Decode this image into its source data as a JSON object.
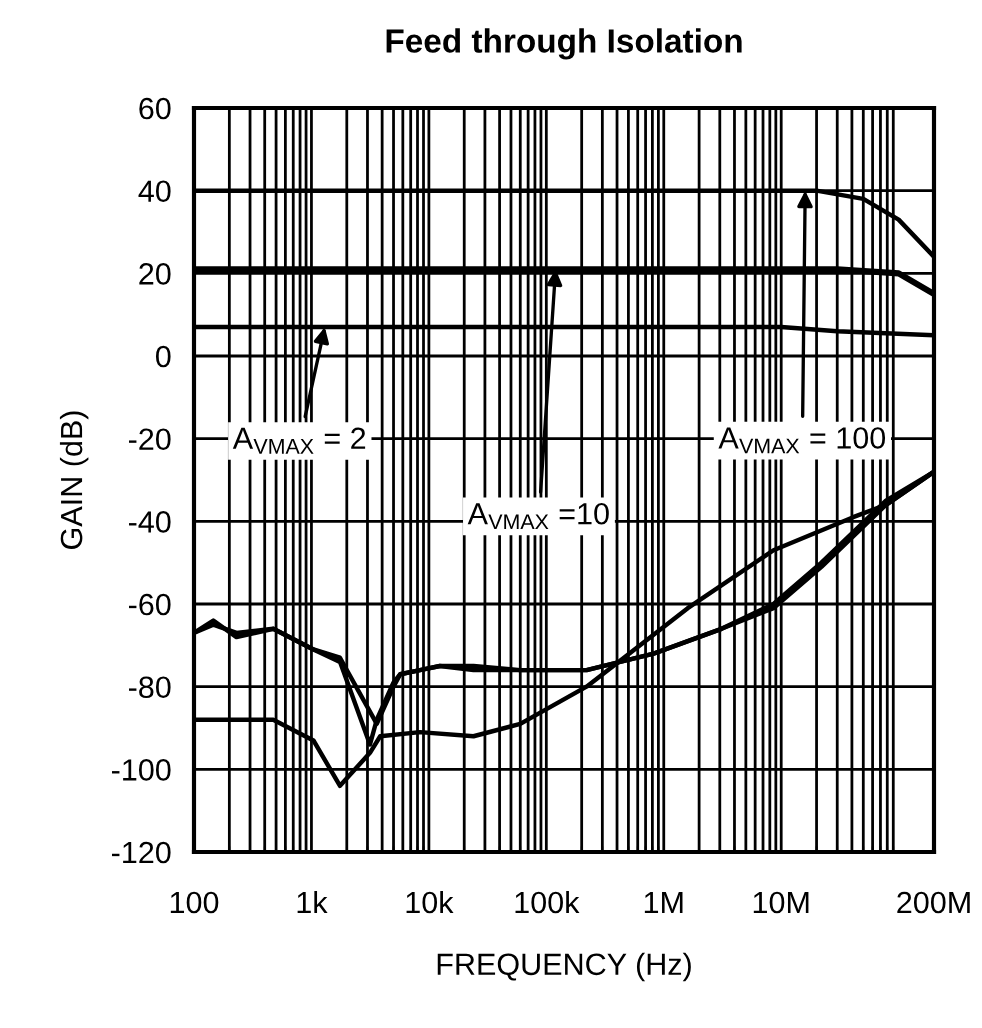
{
  "chart_data": {
    "type": "line",
    "title": "Feed through Isolation",
    "xlabel": "FREQUENCY (Hz)",
    "ylabel": "GAIN (dB)",
    "log": "x",
    "grid": true,
    "legend": false,
    "marker": "none",
    "line_style": "solid",
    "xlim": [
      100,
      200000000
    ],
    "xticks": [
      {
        "value": 100,
        "label": "100"
      },
      {
        "value": 1000,
        "label": "1k"
      },
      {
        "value": 10000,
        "label": "10k"
      },
      {
        "value": 100000,
        "label": "100k"
      },
      {
        "value": 1000000,
        "label": "1M"
      },
      {
        "value": 10000000,
        "label": "10M"
      },
      {
        "value": 200000000,
        "label": "200M"
      }
    ],
    "ylim": [
      -120,
      60
    ],
    "yticks": [
      -120,
      -100,
      -80,
      -60,
      -40,
      -20,
      0,
      20,
      40,
      60
    ],
    "series": [
      {
        "color": "#000000",
        "x": [
          100,
          20000000,
          50000000,
          100000000,
          200000000
        ],
        "values": [
          40,
          40,
          38,
          33,
          24
        ]
      },
      {
        "color": "#000000",
        "x": [
          100,
          30000000,
          100000000,
          200000000
        ],
        "values": [
          21,
          21,
          20,
          15
        ]
      },
      {
        "color": "#000000",
        "x": [
          100,
          10000000,
          30000000,
          200000000
        ],
        "values": [
          7,
          7,
          6,
          5
        ]
      },
      {
        "color": "#000000",
        "x": [
          100,
          146,
          230,
          473,
          1040,
          1750,
          3600,
          5000,
          5700,
          8400,
          12400,
          24000,
          60000,
          220000,
          820000,
          3100000,
          8600000,
          22000000,
          78000000,
          200000000
        ],
        "values": [
          -67,
          -64,
          -68,
          -66,
          -71,
          -73,
          -89,
          -80,
          -77,
          -76,
          -75,
          -75,
          -76,
          -76,
          -72,
          -66,
          -60,
          -50,
          -35,
          -28
        ]
      },
      {
        "color": "#000000",
        "x": [
          100,
          146,
          230,
          473,
          1040,
          1750,
          3150,
          3600,
          5000,
          5700,
          8400,
          12400,
          24000,
          60000,
          220000,
          820000,
          3100000,
          8600000,
          22000000,
          78000000,
          200000000
        ],
        "values": [
          -67,
          -65,
          -67,
          -66,
          -71,
          -74,
          -94,
          -88,
          -79,
          -77,
          -76,
          -75,
          -76,
          -76,
          -76,
          -72,
          -66,
          -61,
          -51,
          -36,
          -28
        ]
      },
      {
        "color": "#000000",
        "x": [
          100,
          473,
          1040,
          1750,
          3150,
          3850,
          8400,
          24000,
          60000,
          220000,
          1600000,
          8600000,
          41000000,
          78000000,
          200000000
        ],
        "values": [
          -88,
          -88,
          -93,
          -104,
          -96,
          -92,
          -91,
          -92,
          -89,
          -80,
          -61,
          -47,
          -39,
          -36,
          -28
        ]
      }
    ],
    "annotations": [
      {
        "text": "A$_{VMAX}$ = 2",
        "x": 1300,
        "y": 7
      },
      {
        "text": "A$_{VMAX}$ =10",
        "x": 120000,
        "y": 21
      },
      {
        "text": "A$_{VMAX}$ = 100",
        "x": 16000000,
        "y": 40
      }
    ]
  }
}
